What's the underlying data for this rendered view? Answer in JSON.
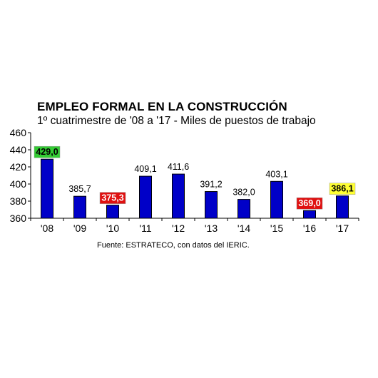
{
  "chart_data": {
    "type": "bar",
    "title": "EMPLEO FORMAL EN LA CONSTRUCCIÓN",
    "subtitle": "1º cuatrimestre de '08 a '17 - Miles de puestos de trabajo",
    "source": "Fuente: ESTRATECO, con datos del IERIC.",
    "categories": [
      "'08",
      "'09",
      "'10",
      "'11",
      "'12",
      "'13",
      "'14",
      "'15",
      "'16",
      "'17"
    ],
    "values": [
      429.0,
      385.7,
      375.3,
      409.1,
      411.6,
      391.2,
      382.0,
      403.1,
      369.0,
      386.1
    ],
    "value_labels": [
      "429,0",
      "385,7",
      "375,3",
      "409,1",
      "411,6",
      "391,2",
      "382,0",
      "403,1",
      "369,0",
      "386,1"
    ],
    "highlight": [
      "green",
      "none",
      "red",
      "none",
      "none",
      "none",
      "none",
      "none",
      "red",
      "yellow"
    ],
    "yticks": [
      "360",
      "380",
      "400",
      "420",
      "440",
      "460"
    ],
    "ylim": [
      360,
      460
    ],
    "grid": false,
    "bar_color": "#0000c8",
    "highlight_colors": {
      "green": "#33cc33",
      "red": "#e01010",
      "yellow": "#ffff33"
    }
  }
}
